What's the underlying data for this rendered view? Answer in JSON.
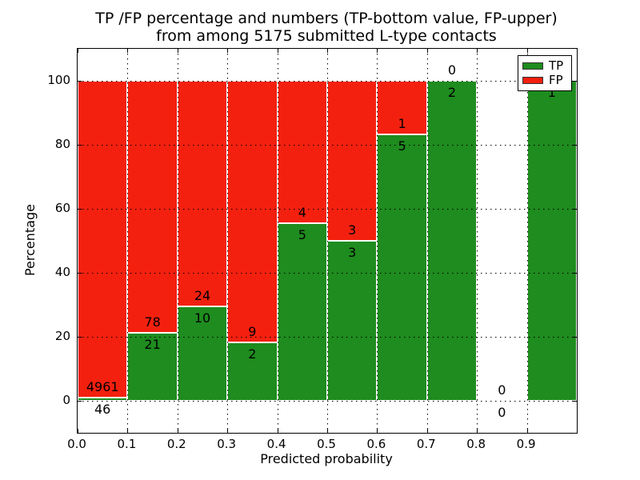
{
  "title": {
    "line1": "TP /FP percentage and numbers (TP-bottom value, FP-upper)",
    "line2": "from among 5175 submitted L-type contacts"
  },
  "axes": {
    "xlabel": "Predicted probability",
    "ylabel": "Percentage",
    "xtick_labels": [
      "0.0",
      "0.1",
      "0.2",
      "0.3",
      "0.4",
      "0.5",
      "0.6",
      "0.7",
      "0.8",
      "0.9"
    ],
    "ytick_values": [
      0,
      20,
      40,
      60,
      80,
      100
    ],
    "xlim": [
      0.0,
      1.0
    ],
    "ylim": [
      -10,
      110
    ],
    "grid": "dotted"
  },
  "legend": {
    "position": "upper-right",
    "items": [
      {
        "label": "TP",
        "color": "#1e8c1e"
      },
      {
        "label": "FP",
        "color": "#f4200f"
      }
    ]
  },
  "colors": {
    "tp": "#1e8c1e",
    "fp": "#f4200f",
    "grid": "#000000",
    "text": "#000000",
    "background": "#ffffff"
  },
  "chart_data": {
    "type": "bar",
    "stacked": true,
    "normalized_to": 100,
    "title": "TP /FP percentage and numbers (TP-bottom value, FP-upper) from among 5175 submitted L-type contacts",
    "xlabel": "Predicted probability",
    "ylabel": "Percentage",
    "categories": [
      "0.0-0.1",
      "0.1-0.2",
      "0.2-0.3",
      "0.3-0.4",
      "0.4-0.5",
      "0.5-0.6",
      "0.6-0.7",
      "0.7-0.8",
      "0.8-0.9",
      "0.9-1.0"
    ],
    "series": [
      {
        "name": "TP",
        "color": "#1e8c1e",
        "values": [
          46,
          21,
          10,
          2,
          5,
          3,
          5,
          2,
          0,
          1
        ]
      },
      {
        "name": "FP",
        "color": "#f4200f",
        "values": [
          4961,
          78,
          24,
          9,
          4,
          3,
          1,
          0,
          0,
          0
        ]
      }
    ],
    "tp_percent_of_bin": [
      0.92,
      21.21,
      29.41,
      18.18,
      55.56,
      50.0,
      83.33,
      100.0,
      null,
      100.0
    ],
    "total_contacts": 5175,
    "legend_position": "upper right",
    "grid": "dotted both axes"
  }
}
